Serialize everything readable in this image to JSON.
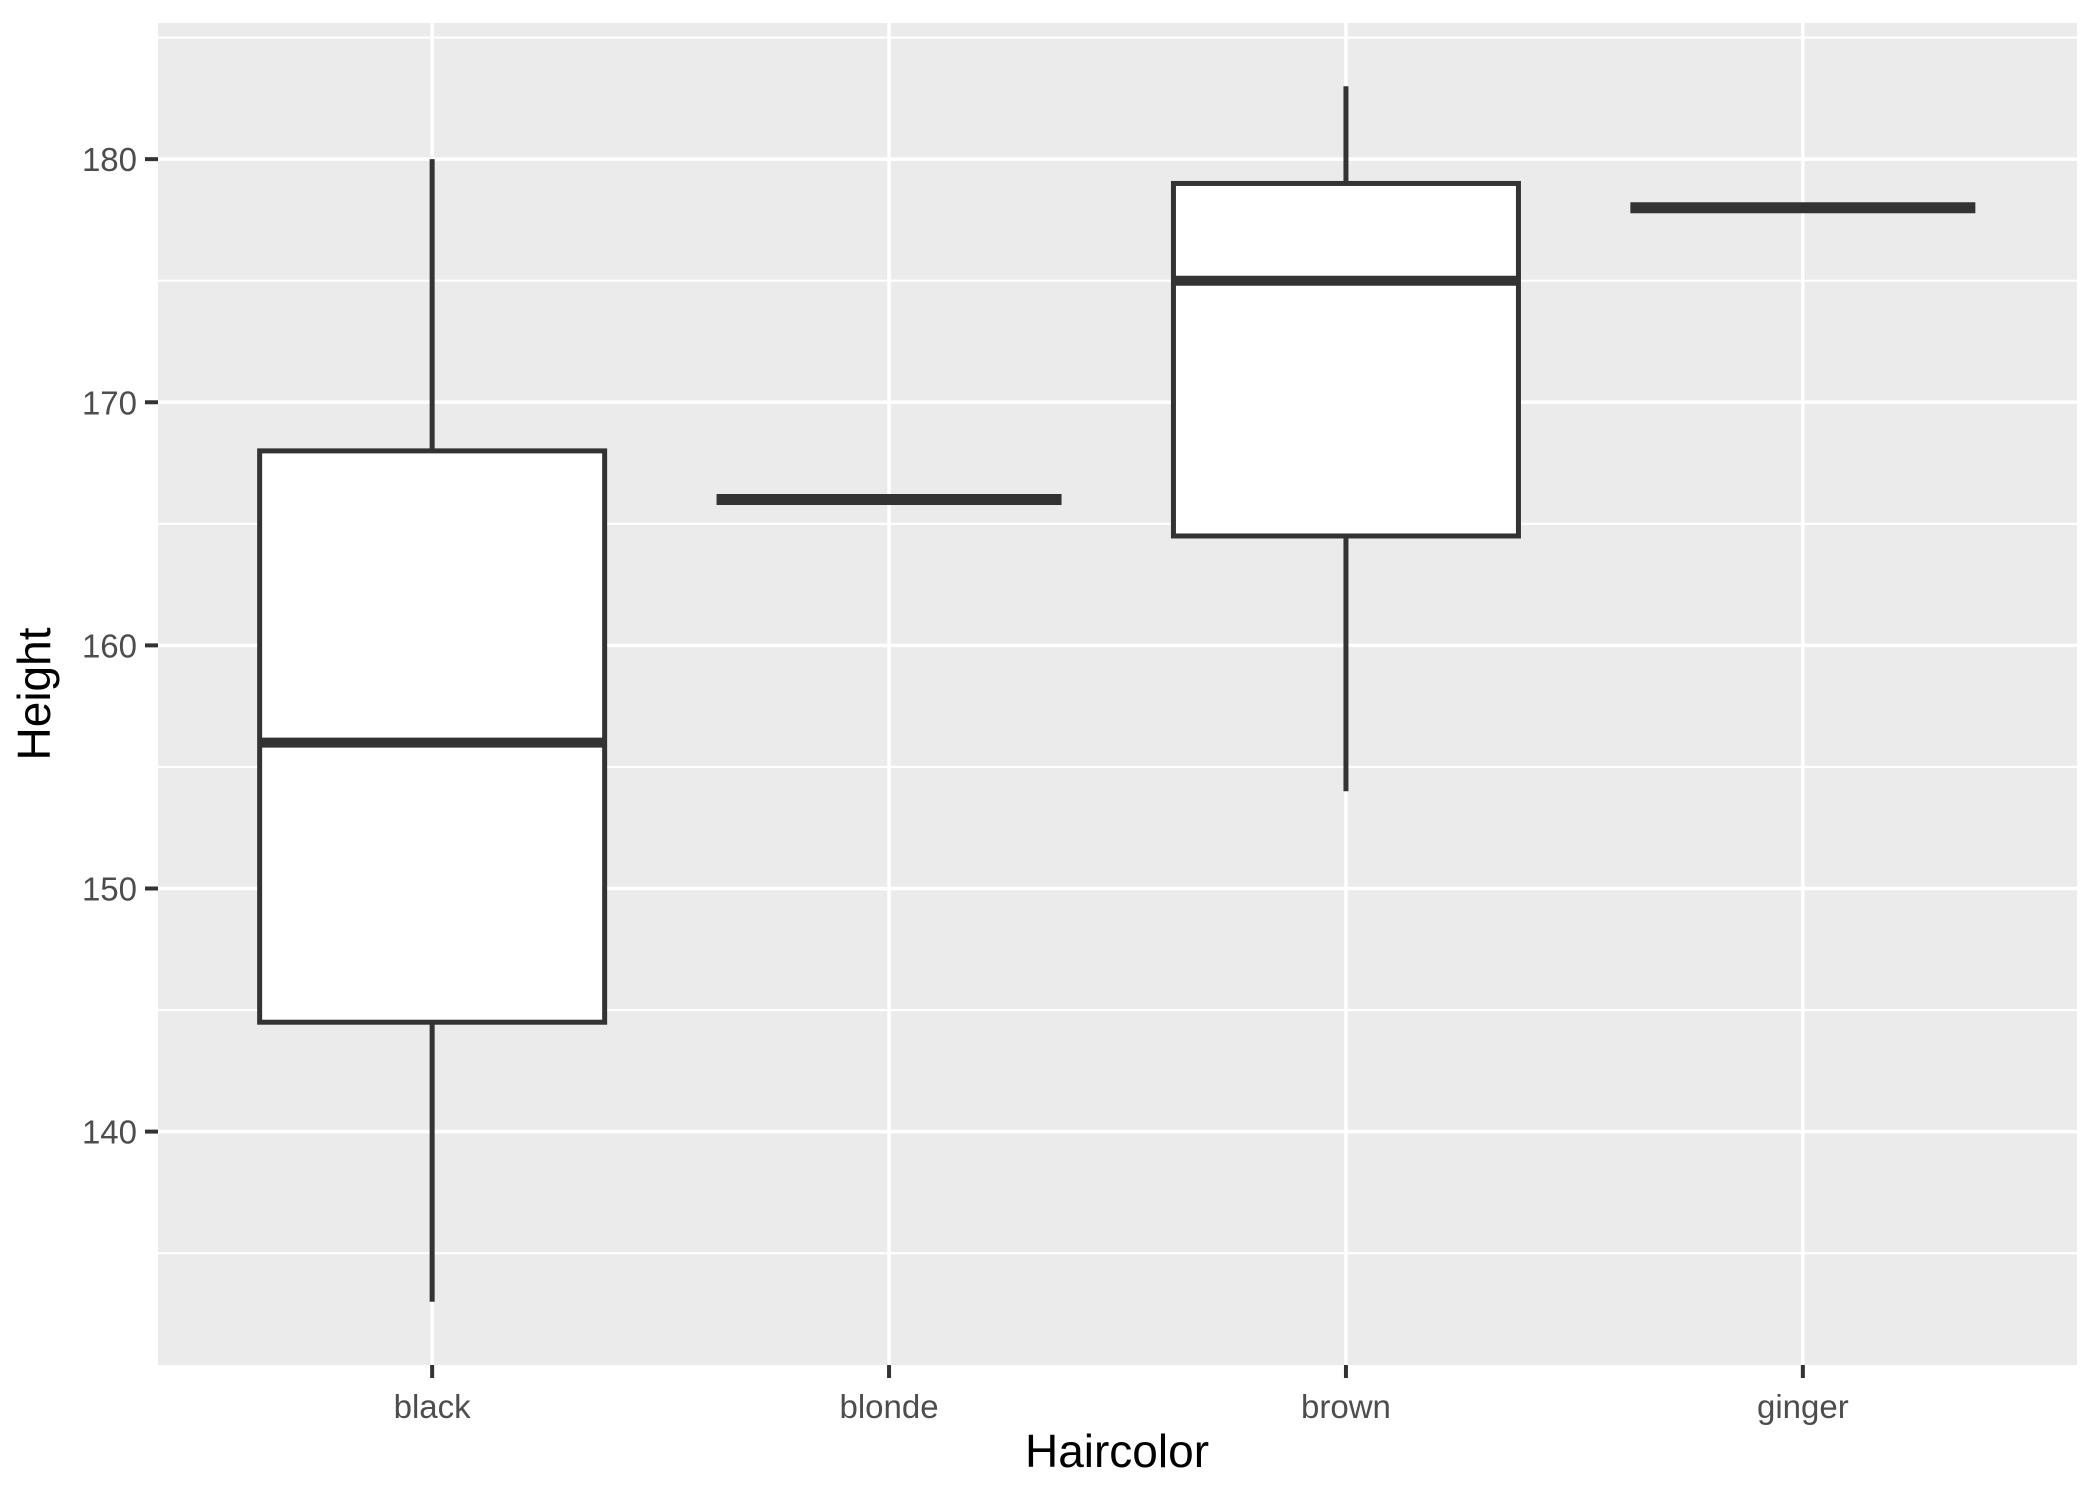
{
  "chart_data": {
    "type": "boxplot",
    "title": "",
    "xlabel": "Haircolor",
    "ylabel": "Height",
    "categories": [
      "black",
      "blonde",
      "brown",
      "ginger"
    ],
    "series": [
      {
        "category": "black",
        "min": 133,
        "q1": 144.5,
        "median": 156,
        "q3": 168,
        "max": 180
      },
      {
        "category": "blonde",
        "min": 166,
        "q1": 166,
        "median": 166,
        "q3": 166,
        "max": 166
      },
      {
        "category": "brown",
        "min": 154,
        "q1": 164.5,
        "median": 175,
        "q3": 179,
        "max": 183
      },
      {
        "category": "ginger",
        "min": 178,
        "q1": 178,
        "median": 178,
        "q3": 178,
        "max": 178
      }
    ],
    "y_major_ticks": [
      140,
      150,
      160,
      170,
      180
    ],
    "y_minor_ticks": [
      135,
      145,
      155,
      165,
      175,
      185
    ],
    "ylim": [
      130.4,
      185.6
    ],
    "grid": "major-and-minor, white on grey panel",
    "legend": false
  },
  "style": {
    "panel_bg": "#EBEBEB",
    "grid_color": "#FFFFFF",
    "box_stroke": "#333333",
    "box_fill": "#FFFFFF",
    "tick_color": "#333333",
    "tick_label_color": "#4D4D4D",
    "axis_title_color": "#000000",
    "figure_bg": "#FFFFFF"
  }
}
